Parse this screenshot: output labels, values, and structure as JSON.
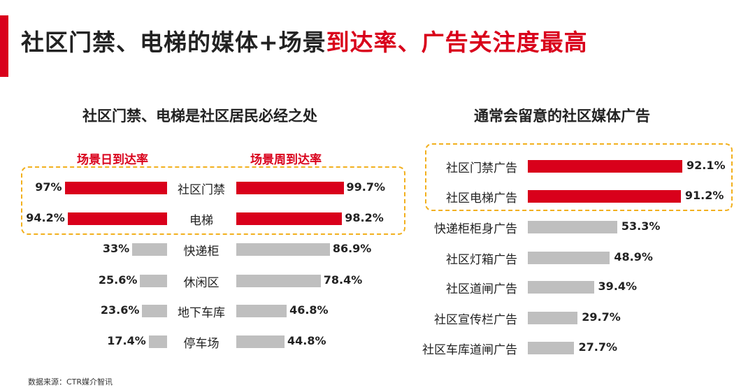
{
  "header": {
    "title_black": "社区门禁、电梯的媒体+场景",
    "title_red": "到达率、广告关注度最高"
  },
  "footer": {
    "source": "数据来源：CTR媒介智讯"
  },
  "colors": {
    "accent": "#d9001b",
    "grey": "#bfbfbf",
    "highlight_border": "#f2b01e"
  },
  "chart_data": [
    {
      "type": "bar",
      "title": "社区门禁、电梯是社区居民必经之处",
      "categories": [
        "社区门禁",
        "电梯",
        "快递柜",
        "休闲区",
        "地下车库",
        "停车场"
      ],
      "series": [
        {
          "name": "场景日到达率",
          "values": [
            97,
            94.2,
            33,
            25.6,
            23.6,
            17.4
          ],
          "labels": [
            "97%",
            "94.2%",
            "33%",
            "25.6%",
            "23.6%",
            "17.4%"
          ]
        },
        {
          "name": "场景周到达率",
          "values": [
            99.7,
            98.2,
            86.9,
            78.4,
            46.8,
            44.8
          ],
          "labels": [
            "99.7%",
            "98.2%",
            "86.9%",
            "78.4%",
            "46.8%",
            "44.8%"
          ]
        }
      ],
      "highlighted": [
        "社区门禁",
        "电梯"
      ],
      "xlim": [
        0,
        100
      ]
    },
    {
      "type": "bar",
      "title": "通常会留意的社区媒体广告",
      "categories": [
        "社区门禁广告",
        "社区电梯广告",
        "快递柜柜身广告",
        "社区灯箱广告",
        "社区道闸广告",
        "社区宣传栏广告",
        "社区车库道闸广告"
      ],
      "values": [
        92.1,
        91.2,
        53.3,
        48.9,
        39.4,
        29.7,
        27.7
      ],
      "labels": [
        "92.1%",
        "91.2%",
        "53.3%",
        "48.9%",
        "39.4%",
        "29.7%",
        "27.7%"
      ],
      "highlighted": [
        "社区门禁广告",
        "社区电梯广告"
      ],
      "xlim": [
        0,
        100
      ]
    }
  ]
}
